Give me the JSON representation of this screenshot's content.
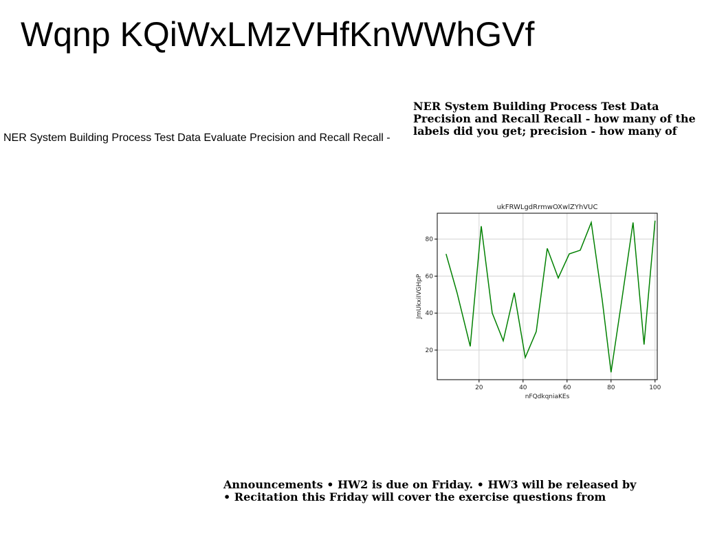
{
  "slide": {
    "title": "Wqnp KQiWxLMzVHfKnWWhGVf",
    "left_text": "NER System Building Process Test Data Evaluate Precision and Recall Recall -",
    "right_text_lines": [
      "NER System Building Process Test Data",
      "Precision and Recall Recall - how many of the",
      "labels did you get; precision - how many of"
    ],
    "announcement_lines": [
      "Announcements • HW2 is due on Friday. • HW3 will be released by",
      "• Recitation this Friday will cover the exercise questions from"
    ]
  },
  "chart_data": {
    "type": "line",
    "title": "ukFRWLgdRrmwOXwlZYhVUC",
    "xlabel": "nFQdkqniaKEs",
    "ylabel": "JmUkxiIVGHpP",
    "x_ticks": [
      20,
      40,
      60,
      80,
      100
    ],
    "y_ticks": [
      20,
      40,
      60,
      80
    ],
    "xlim": [
      1,
      101
    ],
    "ylim": [
      4,
      94
    ],
    "grid": true,
    "line_color": "#008000",
    "series": [
      {
        "x": [
          5,
          10,
          16,
          21,
          26,
          31,
          36,
          41,
          46,
          51,
          56,
          61,
          66,
          71,
          76,
          80,
          85,
          90,
          95,
          100
        ],
        "values": [
          72,
          51,
          22,
          87,
          40,
          25,
          51,
          16,
          30,
          75,
          59,
          72,
          74,
          89,
          47,
          8,
          48,
          89,
          23,
          90
        ]
      }
    ]
  }
}
